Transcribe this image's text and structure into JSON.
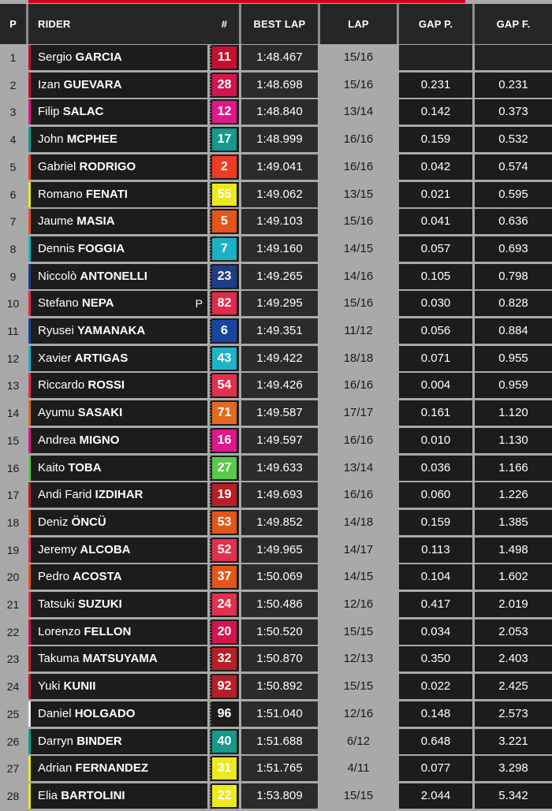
{
  "header": {
    "pos": "P",
    "rider": "RIDER",
    "num": "#",
    "best_lap": "BEST LAP",
    "lap": "LAP",
    "gap_prev": "GAP P.",
    "gap_first": "GAP F."
  },
  "rows": [
    {
      "pos": "1",
      "first": "Sergio",
      "last": "GARCIA",
      "num": "11",
      "num_color": "#c8102e",
      "team_color": "#c8102e",
      "best": "1:48.467",
      "lap": "15/16",
      "gap_p": "",
      "gap_f": "",
      "flag": ""
    },
    {
      "pos": "2",
      "first": "Izan",
      "last": "GUEVARA",
      "num": "28",
      "num_color": "#d4144a",
      "team_color": "#c8102e",
      "best": "1:48.698",
      "lap": "15/16",
      "gap_p": "0.231",
      "gap_f": "0.231",
      "flag": ""
    },
    {
      "pos": "3",
      "first": "Filip",
      "last": "SALAC",
      "num": "12",
      "num_color": "#e0168a",
      "team_color": "#e0168a",
      "best": "1:48.840",
      "lap": "13/14",
      "gap_p": "0.142",
      "gap_f": "0.373",
      "flag": ""
    },
    {
      "pos": "4",
      "first": "John",
      "last": "MCPHEE",
      "num": "17",
      "num_color": "#159a8c",
      "team_color": "#159a8c",
      "best": "1:48.999",
      "lap": "16/16",
      "gap_p": "0.159",
      "gap_f": "0.532",
      "flag": ""
    },
    {
      "pos": "5",
      "first": "Gabriel",
      "last": "RODRIGO",
      "num": "2",
      "num_color": "#ef3b24",
      "team_color": "#ef3b24",
      "best": "1:49.041",
      "lap": "16/16",
      "gap_p": "0.042",
      "gap_f": "0.574",
      "flag": ""
    },
    {
      "pos": "6",
      "first": "Romano",
      "last": "FENATI",
      "num": "55",
      "num_color": "#ecea1c",
      "team_color": "#ecea1c",
      "best": "1:49.062",
      "lap": "13/15",
      "gap_p": "0.021",
      "gap_f": "0.595",
      "flag": ""
    },
    {
      "pos": "7",
      "first": "Jaume",
      "last": "MASIA",
      "num": "5",
      "num_color": "#e2561a",
      "team_color": "#e2561a",
      "best": "1:49.103",
      "lap": "15/16",
      "gap_p": "0.041",
      "gap_f": "0.636",
      "flag": ""
    },
    {
      "pos": "8",
      "first": "Dennis",
      "last": "FOGGIA",
      "num": "7",
      "num_color": "#1bb1c4",
      "team_color": "#1bb1c4",
      "best": "1:49.160",
      "lap": "14/15",
      "gap_p": "0.057",
      "gap_f": "0.693",
      "flag": ""
    },
    {
      "pos": "9",
      "first": "Niccolò",
      "last": "ANTONELLI",
      "num": "23",
      "num_color": "#1f3e86",
      "team_color": "#1f3e86",
      "best": "1:49.265",
      "lap": "14/16",
      "gap_p": "0.105",
      "gap_f": "0.798",
      "flag": ""
    },
    {
      "pos": "10",
      "first": "Stefano",
      "last": "NEPA",
      "num": "82",
      "num_color": "#e32a4a",
      "team_color": "#e32a4a",
      "best": "1:49.295",
      "lap": "15/16",
      "gap_p": "0.030",
      "gap_f": "0.828",
      "flag": "P"
    },
    {
      "pos": "11",
      "first": "Ryusei",
      "last": "YAMANAKA",
      "num": "6",
      "num_color": "#17469e",
      "team_color": "#17469e",
      "best": "1:49.351",
      "lap": "11/12",
      "gap_p": "0.056",
      "gap_f": "0.884",
      "flag": ""
    },
    {
      "pos": "12",
      "first": "Xavier",
      "last": "ARTIGAS",
      "num": "43",
      "num_color": "#1fb3c9",
      "team_color": "#1fb3c9",
      "best": "1:49.422",
      "lap": "18/18",
      "gap_p": "0.071",
      "gap_f": "0.955",
      "flag": ""
    },
    {
      "pos": "13",
      "first": "Riccardo",
      "last": "ROSSI",
      "num": "54",
      "num_color": "#e3304f",
      "team_color": "#e3304f",
      "best": "1:49.426",
      "lap": "16/16",
      "gap_p": "0.004",
      "gap_f": "0.959",
      "flag": ""
    },
    {
      "pos": "14",
      "first": "Ayumu",
      "last": "SASAKI",
      "num": "71",
      "num_color": "#e36a1d",
      "team_color": "#e36a1d",
      "best": "1:49.587",
      "lap": "17/17",
      "gap_p": "0.161",
      "gap_f": "1.120",
      "flag": ""
    },
    {
      "pos": "15",
      "first": "Andrea",
      "last": "MIGNO",
      "num": "16",
      "num_color": "#e0168a",
      "team_color": "#e0168a",
      "best": "1:49.597",
      "lap": "16/16",
      "gap_p": "0.010",
      "gap_f": "1.130",
      "flag": ""
    },
    {
      "pos": "16",
      "first": "Kaito",
      "last": "TOBA",
      "num": "27",
      "num_color": "#5ac84a",
      "team_color": "#5ac84a",
      "best": "1:49.633",
      "lap": "13/14",
      "gap_p": "0.036",
      "gap_f": "1.166",
      "flag": ""
    },
    {
      "pos": "17",
      "first": "Andi Farid",
      "last": "IZDIHAR",
      "num": "19",
      "num_color": "#b81f26",
      "team_color": "#b81f26",
      "best": "1:49.693",
      "lap": "16/16",
      "gap_p": "0.060",
      "gap_f": "1.226",
      "flag": ""
    },
    {
      "pos": "18",
      "first": "Deniz",
      "last": "ÖNCÜ",
      "num": "53",
      "num_color": "#e2561a",
      "team_color": "#e2561a",
      "best": "1:49.852",
      "lap": "14/18",
      "gap_p": "0.159",
      "gap_f": "1.385",
      "flag": ""
    },
    {
      "pos": "19",
      "first": "Jeremy",
      "last": "ALCOBA",
      "num": "52",
      "num_color": "#e3304f",
      "team_color": "#e3304f",
      "best": "1:49.965",
      "lap": "14/17",
      "gap_p": "0.113",
      "gap_f": "1.498",
      "flag": ""
    },
    {
      "pos": "20",
      "first": "Pedro",
      "last": "ACOSTA",
      "num": "37",
      "num_color": "#e2561a",
      "team_color": "#e2561a",
      "best": "1:50.069",
      "lap": "14/15",
      "gap_p": "0.104",
      "gap_f": "1.602",
      "flag": ""
    },
    {
      "pos": "21",
      "first": "Tatsuki",
      "last": "SUZUKI",
      "num": "24",
      "num_color": "#e3304f",
      "team_color": "#e3304f",
      "best": "1:50.486",
      "lap": "12/16",
      "gap_p": "0.417",
      "gap_f": "2.019",
      "flag": ""
    },
    {
      "pos": "22",
      "first": "Lorenzo",
      "last": "FELLON",
      "num": "20",
      "num_color": "#d4144a",
      "team_color": "#d4144a",
      "best": "1:50.520",
      "lap": "15/15",
      "gap_p": "0.034",
      "gap_f": "2.053",
      "flag": ""
    },
    {
      "pos": "23",
      "first": "Takuma",
      "last": "MATSUYAMA",
      "num": "32",
      "num_color": "#b81f26",
      "team_color": "#b81f26",
      "best": "1:50.870",
      "lap": "12/13",
      "gap_p": "0.350",
      "gap_f": "2.403",
      "flag": ""
    },
    {
      "pos": "24",
      "first": "Yuki",
      "last": "KUNII",
      "num": "92",
      "num_color": "#b81f26",
      "team_color": "#b81f26",
      "best": "1:50.892",
      "lap": "15/15",
      "gap_p": "0.022",
      "gap_f": "2.425",
      "flag": ""
    },
    {
      "pos": "25",
      "first": "Daniel",
      "last": "HOLGADO",
      "num": "96",
      "num_color": "#1c1c1c",
      "team_color": "#f2f2f2",
      "best": "1:51.040",
      "lap": "12/16",
      "gap_p": "0.148",
      "gap_f": "2.573",
      "flag": ""
    },
    {
      "pos": "26",
      "first": "Darryn",
      "last": "BINDER",
      "num": "40",
      "num_color": "#159a8c",
      "team_color": "#159a8c",
      "best": "1:51.688",
      "lap": "6/12",
      "gap_p": "0.648",
      "gap_f": "3.221",
      "flag": ""
    },
    {
      "pos": "27",
      "first": "Adrian",
      "last": "FERNANDEZ",
      "num": "31",
      "num_color": "#ecea1c",
      "team_color": "#ecea1c",
      "best": "1:51.765",
      "lap": "4/11",
      "gap_p": "0.077",
      "gap_f": "3.298",
      "flag": ""
    },
    {
      "pos": "28",
      "first": "Elia",
      "last": "BARTOLINI",
      "num": "22",
      "num_color": "#ecea1c",
      "team_color": "#ecea1c",
      "best": "1:53.809",
      "lap": "15/15",
      "gap_p": "2.044",
      "gap_f": "5.342",
      "flag": ""
    }
  ]
}
